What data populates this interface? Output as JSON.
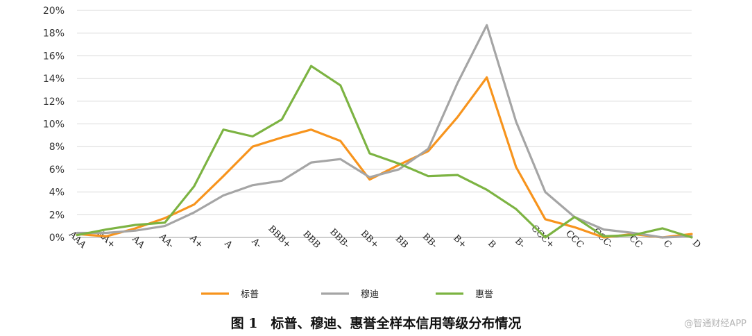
{
  "chart_data": {
    "type": "line",
    "categories": [
      "AAA",
      "AA+",
      "AA",
      "AA-",
      "A+",
      "A",
      "A-",
      "BBB+",
      "BBB",
      "BBB-",
      "BB+",
      "BB",
      "BB-",
      "B+",
      "B",
      "B-",
      "CCC+",
      "CCC",
      "CCC-",
      "CC",
      "C",
      "D"
    ],
    "yticks": [
      "0%",
      "2%",
      "4%",
      "6%",
      "8%",
      "10%",
      "12%",
      "14%",
      "16%",
      "18%",
      "20%"
    ],
    "ylim": [
      0,
      20
    ],
    "series": [
      {
        "name": "标普",
        "color": "#f7941d",
        "values": [
          0.3,
          0.1,
          0.8,
          1.7,
          2.9,
          5.4,
          8.0,
          8.8,
          9.5,
          8.5,
          5.1,
          6.4,
          7.6,
          10.6,
          14.1,
          6.2,
          1.6,
          0.9,
          0.0,
          0.3,
          0.0,
          0.3
        ]
      },
      {
        "name": "穆迪",
        "color": "#a5a5a5",
        "values": [
          0.4,
          0.4,
          0.6,
          1.0,
          2.2,
          3.7,
          4.6,
          5.0,
          6.6,
          6.9,
          5.3,
          6.0,
          7.8,
          13.6,
          18.7,
          10.2,
          4.0,
          1.8,
          0.7,
          0.4,
          0.0,
          0.1
        ]
      },
      {
        "name": "惠誉",
        "color": "#7cb342",
        "values": [
          0.2,
          0.7,
          1.1,
          1.3,
          4.5,
          9.5,
          8.9,
          10.4,
          15.1,
          13.4,
          7.4,
          6.5,
          5.4,
          5.5,
          4.2,
          2.5,
          0.0,
          1.8,
          0.1,
          0.2,
          0.8,
          0.0
        ]
      }
    ],
    "xlabel": "",
    "ylabel": "",
    "grid": true,
    "legend": "bottom"
  },
  "caption": "图 1　标普、穆迪、惠誉全样本信用等级分布情况",
  "watermark": "@智通财经APP"
}
